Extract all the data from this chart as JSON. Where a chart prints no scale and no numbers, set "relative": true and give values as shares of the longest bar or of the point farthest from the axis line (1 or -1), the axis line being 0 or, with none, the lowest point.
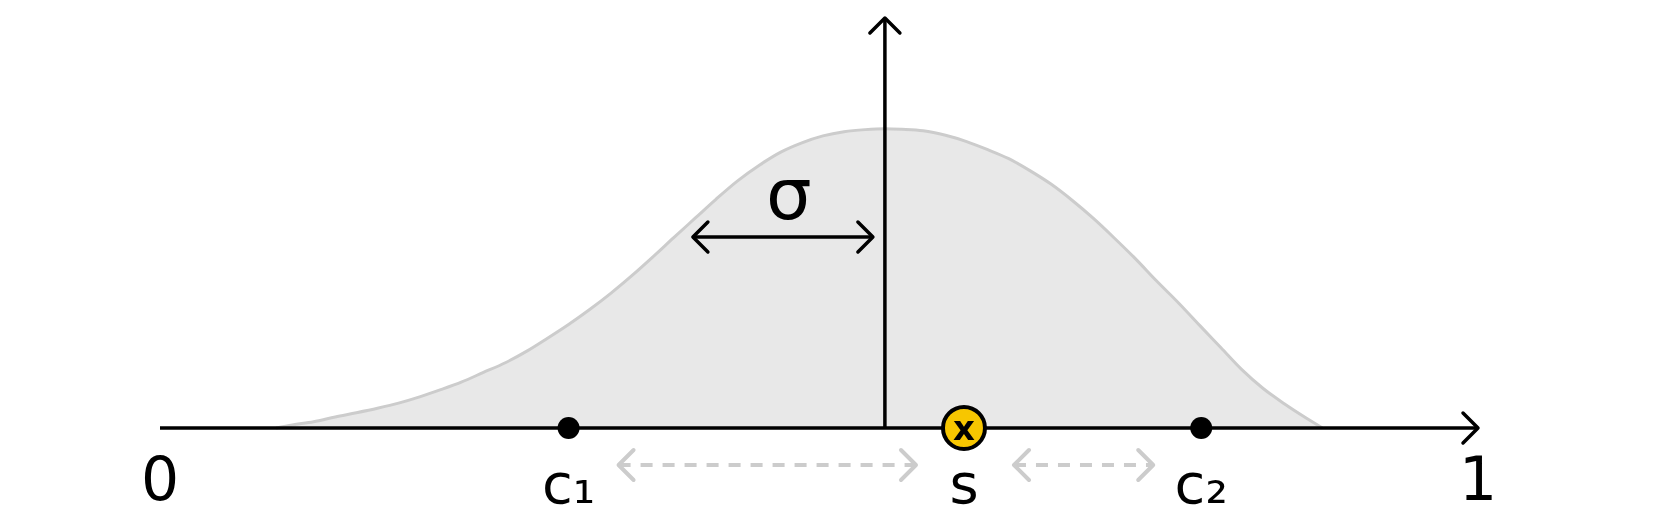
{
  "chart_data": {
    "type": "area",
    "relative": true,
    "xlim": [
      0,
      1
    ],
    "xticks": [
      0,
      1
    ],
    "series": [
      {
        "color": "#cccccc",
        "x": [
          0.088,
          0.1005,
          0.1165,
          0.133,
          0.149,
          0.165,
          0.181,
          0.197,
          0.213,
          0.229,
          0.245,
          0.262,
          0.278,
          0.294,
          0.31,
          0.326,
          0.342,
          0.358,
          0.374,
          0.39,
          0.406,
          0.422,
          0.438,
          0.455,
          0.471,
          0.487,
          0.503,
          0.519,
          0.535,
          0.55,
          0.563,
          0.579,
          0.596,
          0.612,
          0.628,
          0.644,
          0.66,
          0.676,
          0.692,
          0.708,
          0.724,
          0.74,
          0.756,
          0.773,
          0.789,
          0.805,
          0.821,
          0.837,
          0.853,
          0.869,
          0.882
        ],
        "values": [
          0,
          0.01,
          0.021,
          0.037,
          0.051,
          0.066,
          0.083,
          0.104,
          0.128,
          0.154,
          0.185,
          0.218,
          0.256,
          0.3,
          0.346,
          0.396,
          0.45,
          0.509,
          0.572,
          0.637,
          0.701,
          0.765,
          0.825,
          0.879,
          0.922,
          0.953,
          0.976,
          0.99,
          0.997,
          1,
          0.998,
          0.993,
          0.978,
          0.957,
          0.93,
          0.9,
          0.86,
          0.815,
          0.761,
          0.701,
          0.635,
          0.566,
          0.492,
          0.417,
          0.342,
          0.268,
          0.194,
          0.132,
          0.081,
          0.035,
          0
        ]
      },
      {
        "type": "scatter",
        "name": "c₁",
        "color": "#000000",
        "marker": "circle",
        "x": [
          0.31
        ],
        "values": [
          0
        ]
      },
      {
        "type": "scatter",
        "name": "s",
        "color": "#f7c600",
        "marker": "circle",
        "x": [
          0.61
        ],
        "values": [
          0
        ]
      },
      {
        "type": "scatter",
        "name": "c₂",
        "color": "#000000",
        "marker": "circle",
        "x": [
          0.79
        ],
        "values": [
          0
        ]
      }
    ],
    "ref_lines": [
      {
        "axis": "x",
        "value": 0.55
      }
    ],
    "annotations": [
      "σ",
      {
        "text": "x",
        "x": 0.61,
        "y": 0
      }
    ]
  }
}
